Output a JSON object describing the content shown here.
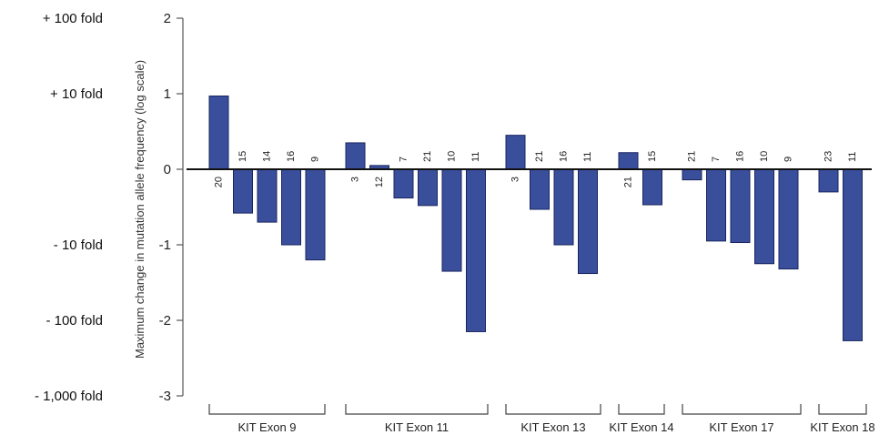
{
  "chart_data": {
    "type": "bar",
    "ylabel": "Maximum change in mutation allele frequency (log scale)",
    "ylim": [
      -3,
      2
    ],
    "yticks": [
      2,
      1,
      0,
      -1,
      -2,
      -3
    ],
    "fold_labels": [
      {
        "y": 2,
        "label": "+ 100 fold"
      },
      {
        "y": 1,
        "label": "+ 10 fold"
      },
      {
        "y": -1,
        "label": "- 10 fold"
      },
      {
        "y": -2,
        "label": "- 100 fold"
      },
      {
        "y": -3,
        "label": "- 1,000 fold"
      }
    ],
    "groups": [
      {
        "name": "KIT Exon 9",
        "bars": [
          {
            "value": 0.97,
            "n": "20"
          },
          {
            "value": -0.58,
            "n": "15"
          },
          {
            "value": -0.7,
            "n": "14"
          },
          {
            "value": -1.0,
            "n": "16"
          },
          {
            "value": -1.2,
            "n": "9"
          }
        ]
      },
      {
        "name": "KIT Exon 11",
        "bars": [
          {
            "value": 0.35,
            "n": "3"
          },
          {
            "value": 0.05,
            "n": "12"
          },
          {
            "value": -0.38,
            "n": "7"
          },
          {
            "value": -0.48,
            "n": "21"
          },
          {
            "value": -1.35,
            "n": "10"
          },
          {
            "value": -2.15,
            "n": "11"
          }
        ]
      },
      {
        "name": "KIT Exon 13",
        "bars": [
          {
            "value": 0.45,
            "n": "3"
          },
          {
            "value": -0.53,
            "n": "21"
          },
          {
            "value": -1.0,
            "n": "16"
          },
          {
            "value": -1.38,
            "n": "11"
          }
        ]
      },
      {
        "name": "KIT Exon 14",
        "bars": [
          {
            "value": 0.22,
            "n": "21"
          },
          {
            "value": -0.47,
            "n": "15"
          }
        ]
      },
      {
        "name": "KIT Exon 17",
        "bars": [
          {
            "value": -0.14,
            "n": "21"
          },
          {
            "value": -0.95,
            "n": "7"
          },
          {
            "value": -0.97,
            "n": "16"
          },
          {
            "value": -1.25,
            "n": "10"
          },
          {
            "value": -1.32,
            "n": "9"
          }
        ]
      },
      {
        "name": "KIT Exon 18",
        "bars": [
          {
            "value": -0.3,
            "n": "23"
          },
          {
            "value": -2.27,
            "n": "11"
          }
        ]
      }
    ],
    "colors": {
      "bar": "#3a4f9c",
      "bar_edge": "#1a2560"
    }
  }
}
